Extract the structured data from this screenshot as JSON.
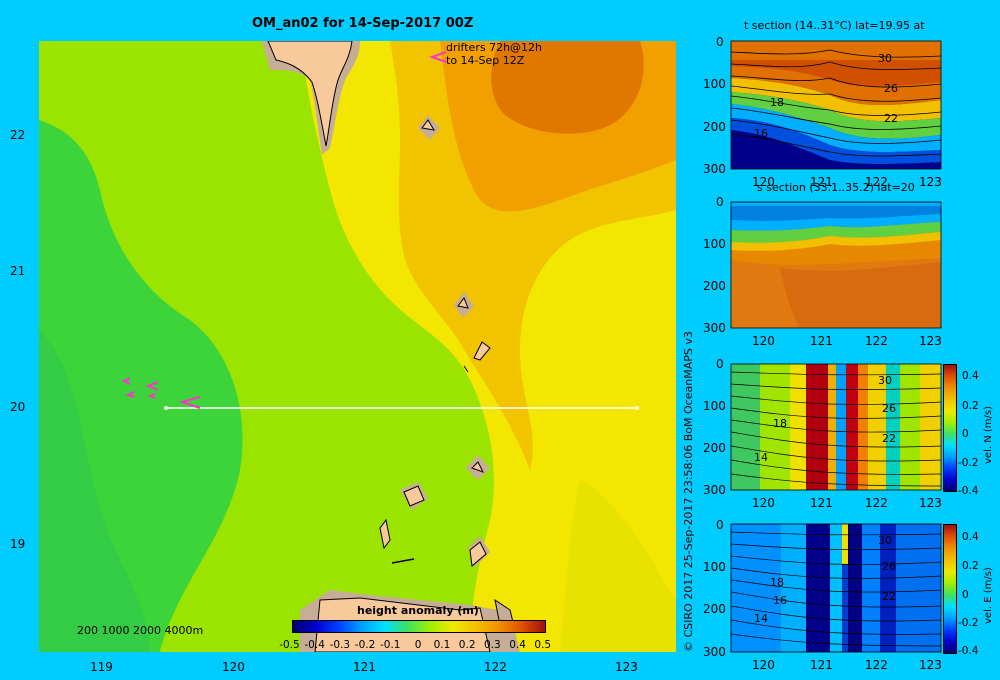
{
  "main_map": {
    "title": "OM_an02 for 14-Sep-2017 00Z",
    "drifters_label_1": "drifters 72h@12h",
    "drifters_label_2": "to 14-Sep 12Z",
    "depth_legend": "200 1000 2000 4000m",
    "lat_ticks": [
      "22",
      "21",
      "20",
      "19"
    ],
    "lon_ticks": [
      "119",
      "120",
      "121",
      "122",
      "123"
    ],
    "colorbar_title": "height anomaly (m)",
    "colorbar_ticks": [
      "-0.5",
      "-0.4",
      "-0.3",
      "-0.2",
      "-0.1",
      "0",
      "0.1",
      "0.2",
      "0.3",
      "0.4",
      "0.5"
    ],
    "colorbar_range": [
      -0.5,
      0.5
    ],
    "section_line": {
      "lat": 20,
      "lon_start": 119.5,
      "lon_end": 123.2
    }
  },
  "credit": "© CSIRO 2017   25-Sep-2017 23:58:06 BoM OceanMAPS v3",
  "panels": [
    {
      "title": "t section (14..31°C) lat=19.95 at",
      "y_ticks": [
        "0",
        "100",
        "200",
        "300"
      ],
      "x_ticks": [
        "120",
        "121",
        "122",
        "123"
      ],
      "contour_labels": [
        "30",
        "26",
        "22",
        "18",
        "16"
      ],
      "colorbar": null
    },
    {
      "title": "s section (33.1..35.2) lat=20",
      "y_ticks": [
        "0",
        "100",
        "200",
        "300"
      ],
      "x_ticks": [
        "120",
        "121",
        "122",
        "123"
      ],
      "contour_labels": [],
      "colorbar": null
    },
    {
      "title": "",
      "y_ticks": [
        "0",
        "100",
        "200",
        "300"
      ],
      "x_ticks": [
        "120",
        "121",
        "122",
        "123"
      ],
      "contour_labels": [
        "30",
        "26",
        "22",
        "18",
        "14"
      ],
      "colorbar": {
        "label": "vel. N (m/s)",
        "ticks": [
          "0.4",
          "0.2",
          "0",
          "-0.2",
          "-0.4"
        ]
      }
    },
    {
      "title": "",
      "y_ticks": [
        "0",
        "100",
        "200",
        "300"
      ],
      "x_ticks": [
        "120",
        "121",
        "122",
        "123"
      ],
      "contour_labels": [
        "30",
        "26",
        "22",
        "18",
        "16",
        "14"
      ],
      "colorbar": {
        "label": "vel. E (m/s)",
        "ticks": [
          "0.4",
          "0.2",
          "0",
          "-0.2",
          "-0.4"
        ]
      }
    }
  ]
}
